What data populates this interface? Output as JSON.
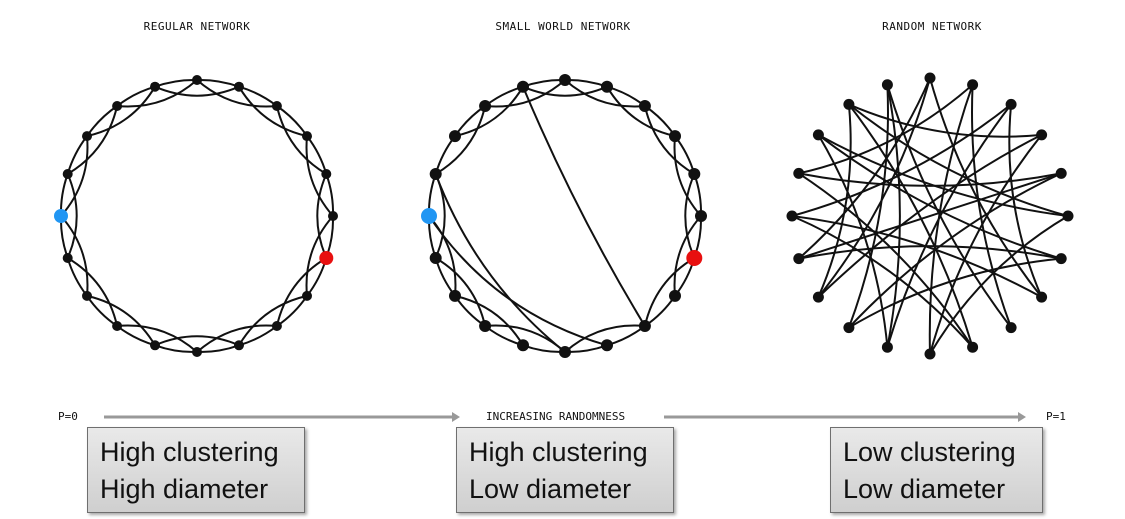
{
  "panels": [
    {
      "title": "REGULAR NETWORK"
    },
    {
      "title": "SMALL WORLD NETWORK"
    },
    {
      "title": "RANDOM NETWORK"
    }
  ],
  "axis": {
    "start_label": "P=0",
    "middle_label": "INCREASING RANDOMNESS",
    "end_label": "P=1"
  },
  "boxes": [
    {
      "clustering": "High clustering",
      "diameter": "High diameter"
    },
    {
      "clustering": "High clustering",
      "diameter": "Low diameter"
    },
    {
      "clustering": "Low clustering",
      "diameter": "Low diameter"
    }
  ],
  "colors": {
    "highlight_blue": "#2196f3",
    "highlight_red": "#e81010",
    "node": "#111111",
    "edge": "#111111",
    "arrow": "#999999"
  }
}
